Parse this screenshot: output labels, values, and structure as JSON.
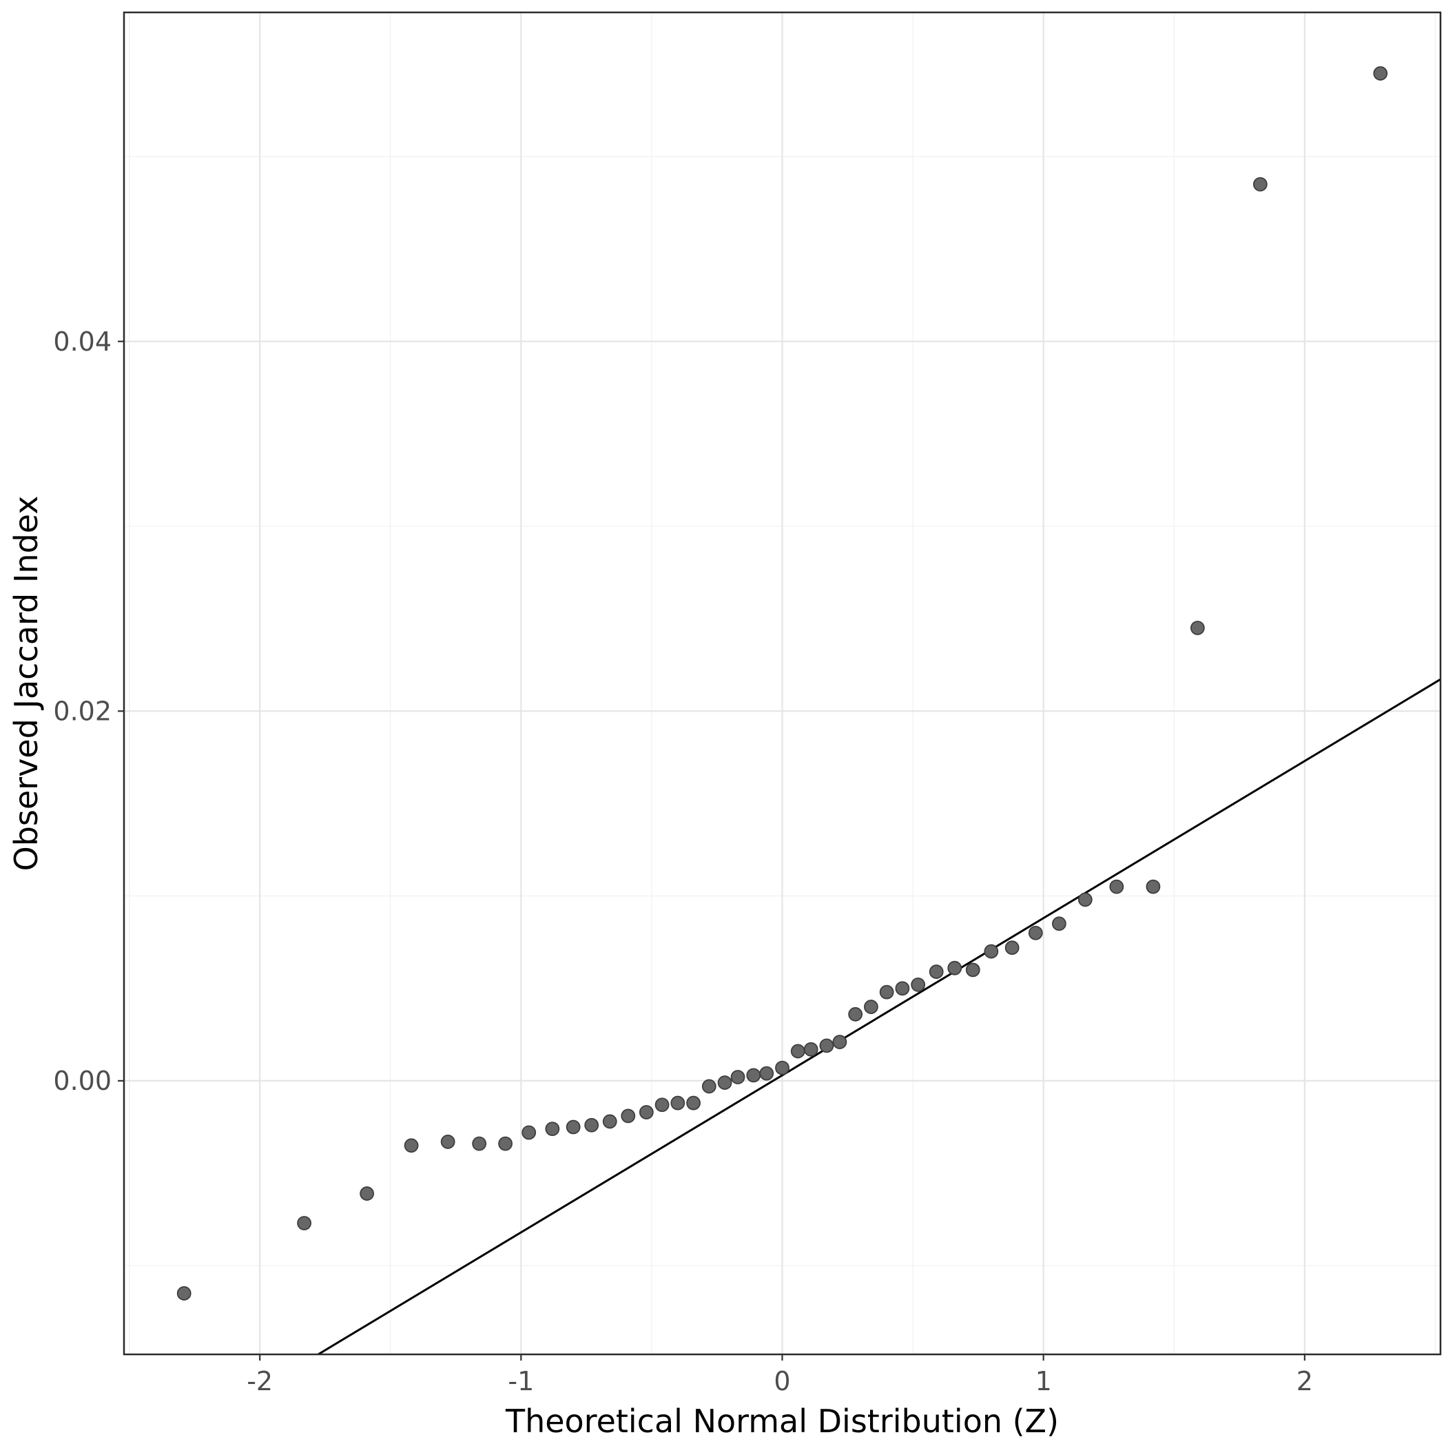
{
  "page": {
    "background": "#ffffff"
  },
  "chart_data": {
    "type": "scatter",
    "subtype": "qq-plot",
    "title": "",
    "xlabel": "Theoretical Normal Distribution (Z)",
    "ylabel": "Observed Jaccard Index",
    "xlim": [
      -2.52,
      2.52
    ],
    "ylim": [
      -0.0148,
      0.0578
    ],
    "x_ticks": [
      -2,
      -1,
      0,
      1,
      2
    ],
    "x_tick_labels": [
      "-2",
      "-1",
      "0",
      "1",
      "2"
    ],
    "x_minor_ticks": [
      -2.5,
      -1.5,
      -0.5,
      0.5,
      1.5,
      2.5
    ],
    "y_ticks": [
      0,
      0.02,
      0.04
    ],
    "y_tick_labels": [
      "0.00",
      "0.02",
      "0.04"
    ],
    "y_minor_ticks": [
      -0.01,
      0.01,
      0.03,
      0.05
    ],
    "grid": "major+minor",
    "legend_position": "none",
    "reference_line": {
      "slope": 0.0085,
      "intercept": 0.0003
    },
    "points": [
      [
        -2.29,
        -0.0115
      ],
      [
        -1.83,
        -0.0077
      ],
      [
        -1.59,
        -0.0061
      ],
      [
        -1.42,
        -0.0035
      ],
      [
        -1.28,
        -0.0033
      ],
      [
        -1.16,
        -0.0034
      ],
      [
        -1.06,
        -0.0034
      ],
      [
        -0.97,
        -0.0028
      ],
      [
        -0.88,
        -0.0026
      ],
      [
        -0.8,
        -0.0025
      ],
      [
        -0.73,
        -0.0024
      ],
      [
        -0.66,
        -0.0022
      ],
      [
        -0.59,
        -0.0019
      ],
      [
        -0.52,
        -0.0017
      ],
      [
        -0.46,
        -0.0013
      ],
      [
        -0.4,
        -0.0012
      ],
      [
        -0.34,
        -0.0012
      ],
      [
        -0.28,
        -0.0003
      ],
      [
        -0.22,
        -0.0001
      ],
      [
        -0.17,
        0.0002
      ],
      [
        -0.11,
        0.0003
      ],
      [
        -0.06,
        0.0004
      ],
      [
        0.0,
        0.0007
      ],
      [
        0.06,
        0.0016
      ],
      [
        0.11,
        0.0017
      ],
      [
        0.17,
        0.0019
      ],
      [
        0.22,
        0.0021
      ],
      [
        0.28,
        0.0036
      ],
      [
        0.34,
        0.004
      ],
      [
        0.4,
        0.0048
      ],
      [
        0.46,
        0.005
      ],
      [
        0.52,
        0.0052
      ],
      [
        0.59,
        0.0059
      ],
      [
        0.66,
        0.0061
      ],
      [
        0.73,
        0.006
      ],
      [
        0.8,
        0.007
      ],
      [
        0.88,
        0.0072
      ],
      [
        0.97,
        0.008
      ],
      [
        1.06,
        0.0085
      ],
      [
        1.16,
        0.0098
      ],
      [
        1.28,
        0.0105
      ],
      [
        1.42,
        0.0105
      ],
      [
        1.59,
        0.0245
      ],
      [
        1.83,
        0.0485
      ],
      [
        2.29,
        0.0545
      ]
    ],
    "style": {
      "panel_background": "#ffffff",
      "panel_border_color": "#2b2b2b",
      "grid_major_color": "#e5e5e5",
      "grid_minor_color": "#f0f0f0",
      "point_fill": "#676767",
      "point_stroke": "#3e3e3e",
      "reference_line_color": "#000000",
      "tick_mark_color": "#333333",
      "tick_label_color": "#4d4d4d"
    }
  }
}
